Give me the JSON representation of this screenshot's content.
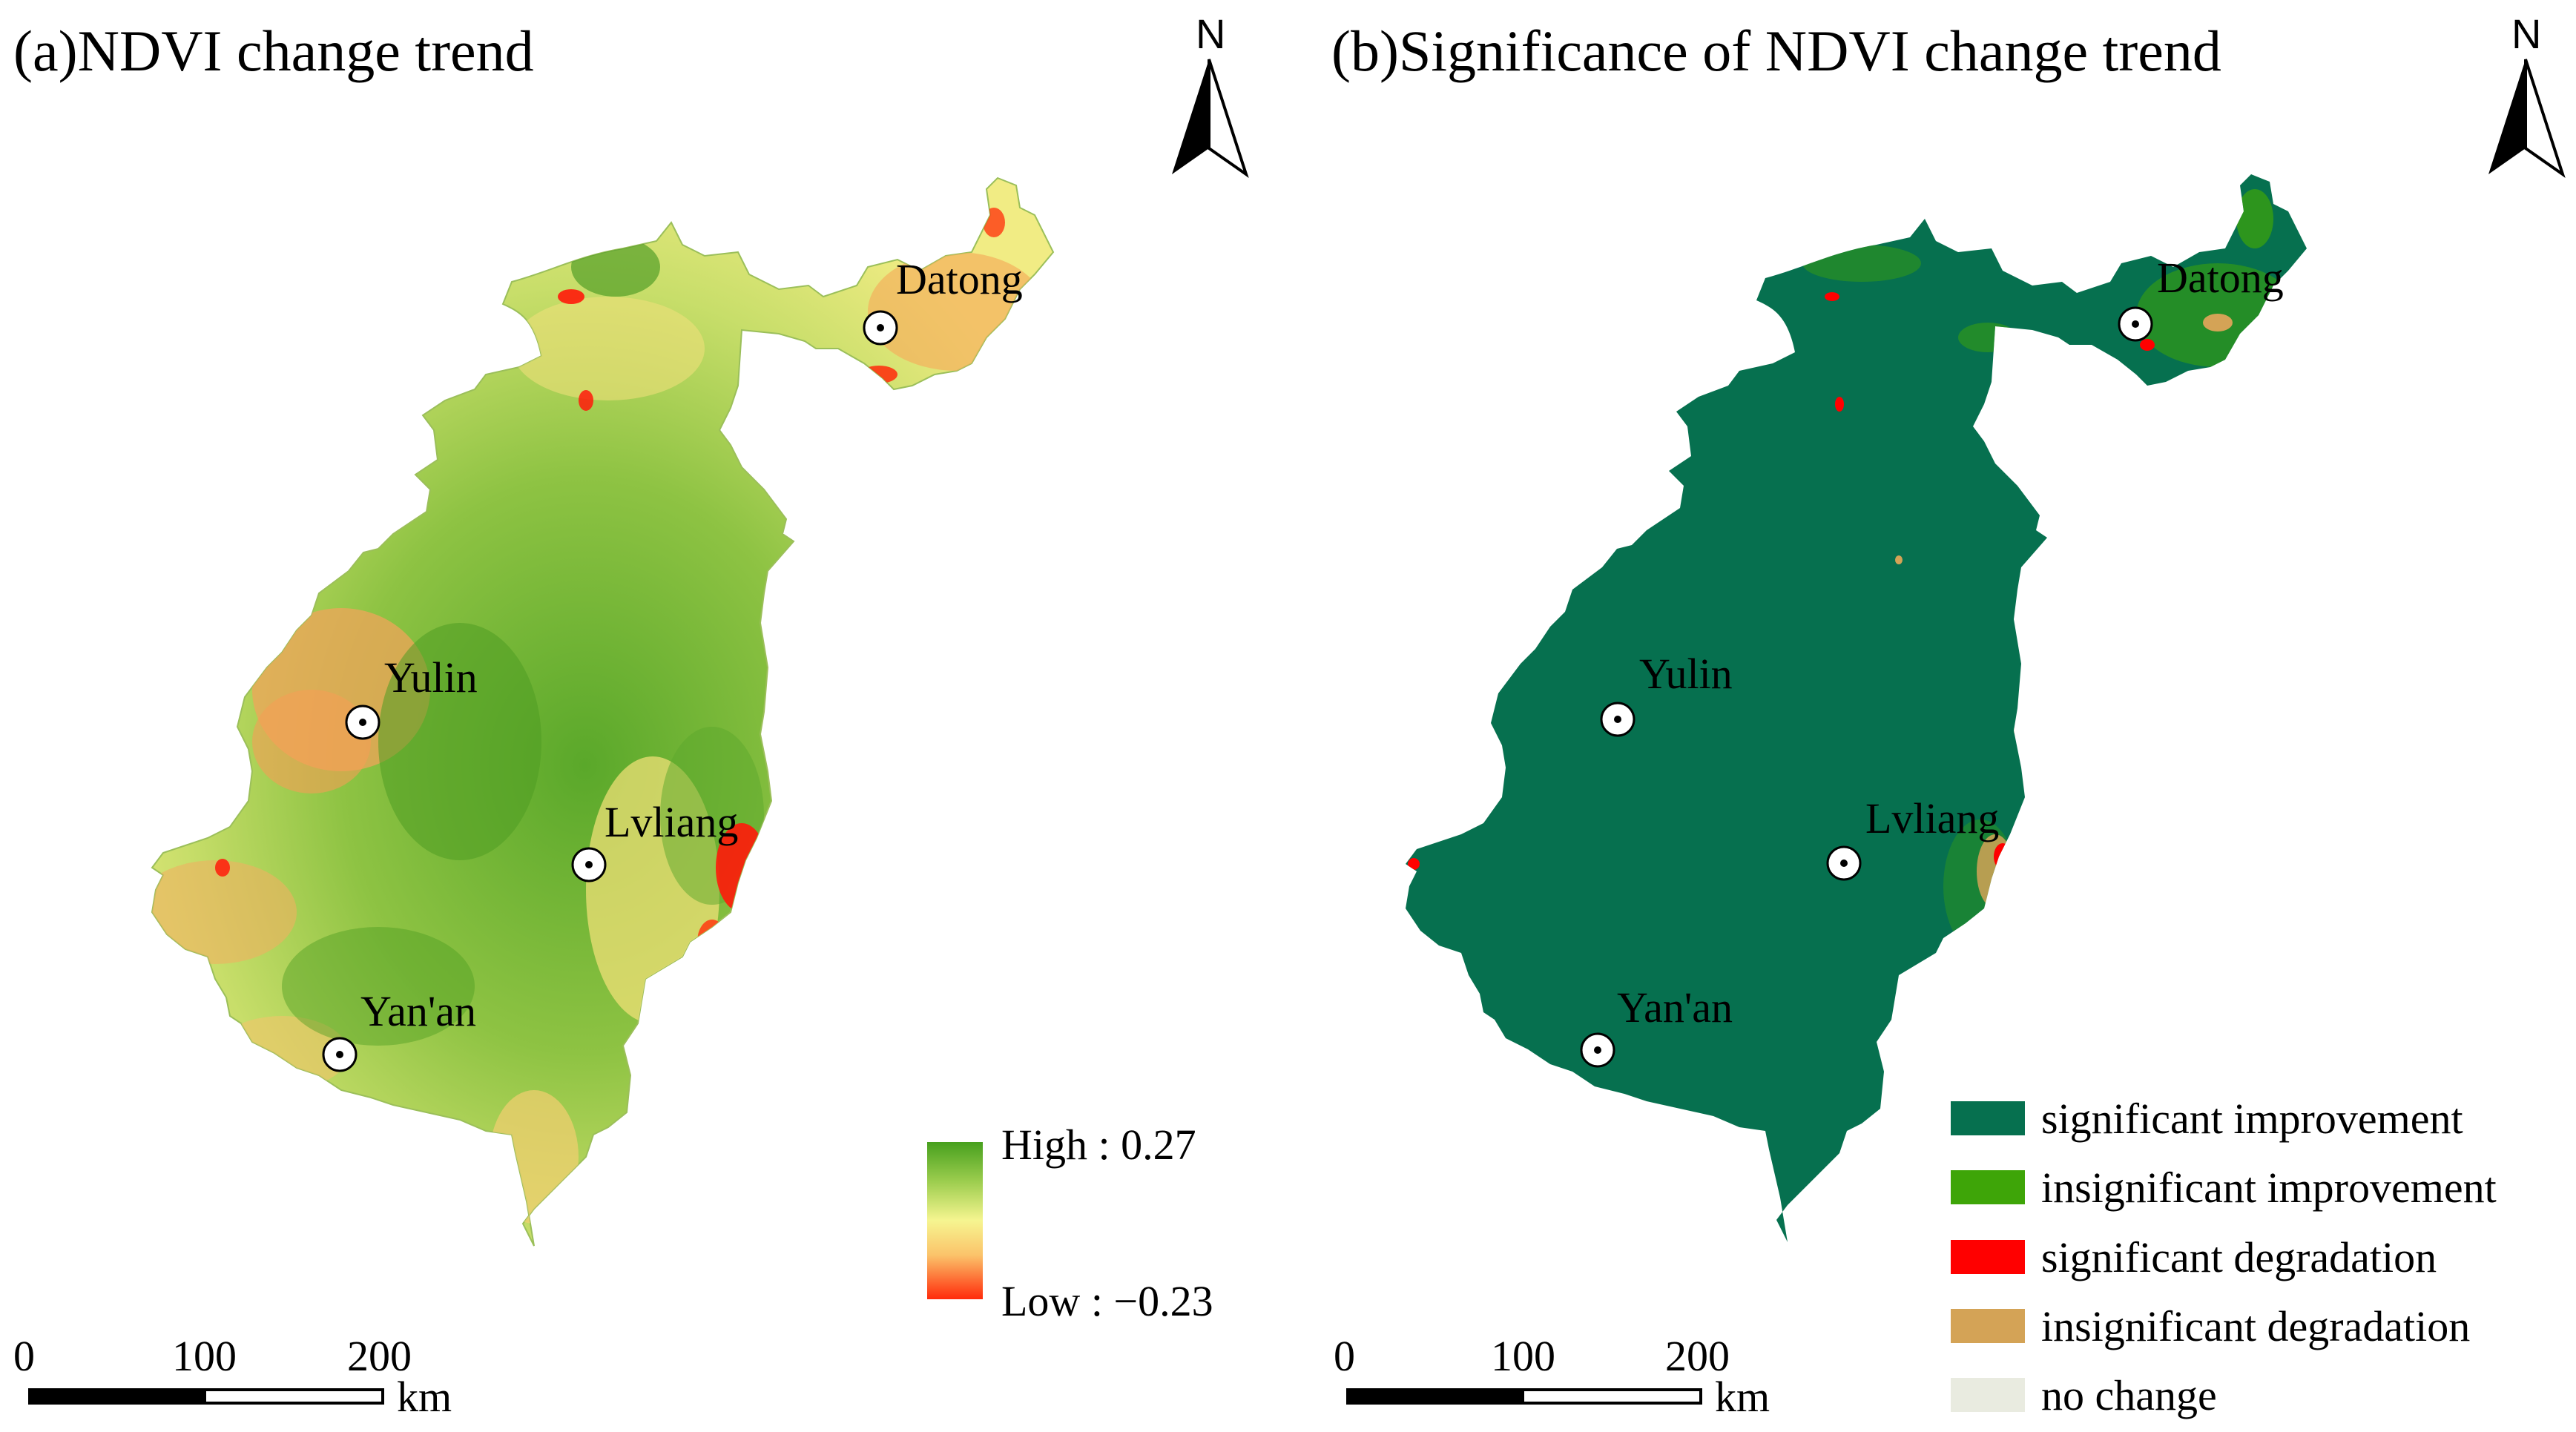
{
  "panel_a": {
    "title": "(a)NDVI change trend",
    "north": "N",
    "cities": [
      {
        "name": "Datong"
      },
      {
        "name": "Yulin"
      },
      {
        "name": "Lvliang"
      },
      {
        "name": "Yan'an"
      }
    ],
    "legend": {
      "high": "High : 0.27",
      "low": "Low : −0.23"
    },
    "scalebar": {
      "ticks": [
        "0",
        "100",
        "200"
      ],
      "unit": "km"
    }
  },
  "panel_b": {
    "title": "(b)Significance of NDVI change trend",
    "north": "N",
    "cities": [
      {
        "name": "Datong"
      },
      {
        "name": "Yulin"
      },
      {
        "name": "Lvliang"
      },
      {
        "name": "Yan'an"
      }
    ],
    "legend": [
      {
        "label": "significant improvement",
        "color": "#06704f"
      },
      {
        "label": "insignificant improvement",
        "color": "#3ea508"
      },
      {
        "label": "significant degradation",
        "color": "#ff0000"
      },
      {
        "label": "insignificant degradation",
        "color": "#d4a356"
      },
      {
        "label": "no change",
        "color": "#e9ebe0"
      }
    ],
    "scalebar": {
      "ticks": [
        "0",
        "100",
        "200"
      ],
      "unit": "km"
    }
  },
  "colors": {
    "ndvi_high": "#4aa31e",
    "ndvi_mid": "#fff58a",
    "ndvi_low": "#ff1a0a"
  }
}
